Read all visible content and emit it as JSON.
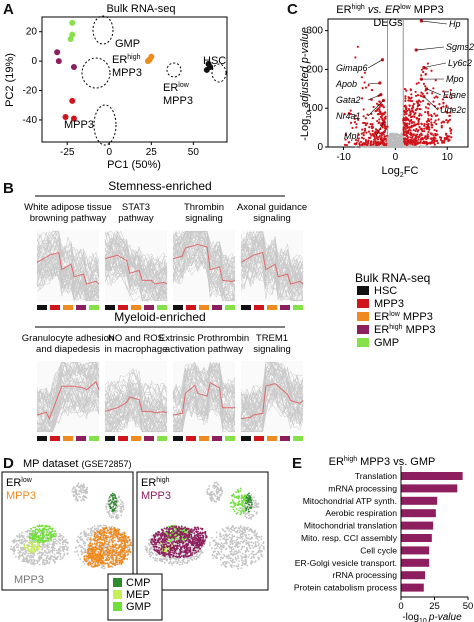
{
  "panels": {
    "A": {
      "label": "A",
      "title": "Bulk RNA-seq",
      "xlabel": "PC1 (50%)",
      "ylabel": "PC2 (19%)",
      "xticks": [
        "-25",
        "0",
        "25",
        "50"
      ],
      "yticks": [
        "20",
        "0",
        "-20",
        "-40"
      ],
      "groups": {
        "gmp": "GMP",
        "erhigh_er": "ER",
        "erhigh_sup": "high",
        "erhigh_rest": "MPP3",
        "erlow_er": "ER",
        "erlow_sup": "low",
        "erlow_rest": "MPP3",
        "hsc": "HSC",
        "mpp3": "MPP3"
      }
    },
    "B": {
      "label": "B",
      "stemness_header": "Stemness-enriched",
      "myeloid_header": "Myeloid-enriched",
      "stemness_pathways": [
        [
          "White adipose tissue",
          "browning pathway"
        ],
        [
          "STAT3",
          "pathway"
        ],
        [
          "Thrombin",
          "signaling"
        ],
        [
          "Axonal guidance",
          "signaling"
        ]
      ],
      "myeloid_pathways": [
        [
          "Granulocyte adhesion",
          "and diapedesis"
        ],
        [
          "NO and ROS",
          "in macrophage"
        ],
        [
          "Extrinsic Prothrombin",
          "activation pathway"
        ],
        [
          "TREM1",
          "signaling"
        ]
      ],
      "legend_title": "Bulk RNA-seq",
      "legend": [
        {
          "label": "HSC",
          "color": "#111111"
        },
        {
          "label": "MPP3",
          "color": "#d0141c"
        },
        {
          "er": "ER",
          "sup": "low",
          "rest": " MPP3",
          "color": "#ef8a1e"
        },
        {
          "er": "ER",
          "sup": "high",
          "rest": " MPP3",
          "color": "#8e1f5e"
        },
        {
          "label": "GMP",
          "color": "#86e04a"
        }
      ]
    },
    "C": {
      "label": "C",
      "title_er1": "ER",
      "title_sup1": "high",
      "title_vs": " vs. ER",
      "title_sup2": "low",
      "title_rest": " MPP3",
      "subtitle": "DEGs",
      "xlabel_main": "Log",
      "xlabel_sub": "2",
      "xlabel_end": "FC",
      "ylabel": "-Log",
      "ylabel_sub": "10",
      "ylabel_end": " adjusted p-value",
      "xticks": [
        "-10",
        "0",
        "10"
      ],
      "yticks": [
        "300",
        "200",
        "100",
        "0"
      ],
      "genes_left": [
        "Gimap6",
        "Apob",
        "Gata2",
        "Nr4a1",
        "Mpl"
      ],
      "genes_right": [
        "Hp",
        "Sgms2",
        "Ly6c2",
        "Mpo",
        "Elane",
        "Ube2c"
      ]
    },
    "D": {
      "label": "D",
      "title": "MP dataset",
      "title_gse": "(GSE72857)",
      "left_er": "ER",
      "left_sup": "low",
      "left_rest": "MPP3",
      "left_bottom": "MPP3",
      "right_er": "ER",
      "right_sup": "high",
      "right_rest": "MPP3",
      "legend": [
        {
          "label": "CMP",
          "color": "#2e8b2e"
        },
        {
          "label": "MEP",
          "color": "#c8ee5a"
        },
        {
          "label": "GMP",
          "color": "#6fe03a"
        }
      ]
    },
    "E": {
      "label": "E",
      "title_er": "ER",
      "title_sup": "high",
      "title_rest": " MPP3 vs. GMP",
      "xlabel": "-log",
      "xlabel_sub": "10",
      "xlabel_end": "p-value",
      "bar_color": "#8e1f5e"
    }
  },
  "chart_data": [
    {
      "type": "scatter",
      "panel": "A",
      "title": "Bulk RNA-seq",
      "xlabel": "PC1 (50%)",
      "ylabel": "PC2 (19%)",
      "xlim": [
        -40,
        70
      ],
      "ylim": [
        -55,
        30
      ],
      "series": [
        {
          "name": "GMP",
          "color": "#86e04a",
          "points": [
            [
              -22,
              26
            ],
            [
              -22,
              18
            ],
            [
              -23,
              15
            ]
          ]
        },
        {
          "name": "ERhigh MPP3",
          "color": "#8e1f5e",
          "points": [
            [
              -31,
              6
            ],
            [
              -30,
              0
            ],
            [
              -21,
              -4
            ]
          ]
        },
        {
          "name": "ERlow MPP3",
          "color": "#ef8a1e",
          "points": [
            [
              24,
              1
            ],
            [
              25,
              3
            ],
            [
              23,
              0
            ]
          ]
        },
        {
          "name": "HSC",
          "color": "#111111",
          "points": [
            [
              59,
              -2
            ],
            [
              60,
              -4
            ],
            [
              58,
              -6
            ]
          ]
        },
        {
          "name": "MPP3",
          "color": "#d0141c",
          "points": [
            [
              -22,
              -27
            ],
            [
              -26,
              -38
            ],
            [
              -21,
              -39
            ]
          ]
        }
      ]
    },
    {
      "type": "scatter",
      "panel": "C",
      "xlabel": "Log2FC",
      "ylabel": "-Log10 adjusted p-value",
      "xlim": [
        -13,
        14
      ],
      "ylim": [
        0,
        330
      ],
      "thresholds": {
        "x": [
          -1.5,
          1.5
        ]
      },
      "labeled_points": [
        {
          "gene": "Hp",
          "x": 5.0,
          "y": 325
        },
        {
          "gene": "Sgms2",
          "x": 4.0,
          "y": 250
        },
        {
          "gene": "Ly6c2",
          "x": 5.5,
          "y": 205
        },
        {
          "gene": "Mpo",
          "x": 5.0,
          "y": 175
        },
        {
          "gene": "Elane",
          "x": 6.0,
          "y": 150
        },
        {
          "gene": "Ube2c",
          "x": 5.5,
          "y": 130
        },
        {
          "gene": "Gimap6",
          "x": -2.5,
          "y": 225
        },
        {
          "gene": "Apob",
          "x": -3.0,
          "y": 165
        },
        {
          "gene": "Gata2",
          "x": -2.8,
          "y": 135
        },
        {
          "gene": "Nr4a1",
          "x": -2.3,
          "y": 120
        },
        {
          "gene": "Mpl",
          "x": -2.2,
          "y": 65
        }
      ]
    },
    {
      "type": "bar",
      "panel": "E",
      "orientation": "horizontal",
      "title": "ERhigh MPP3 vs. GMP",
      "xlabel": "-log10 p-value",
      "xlim": [
        0,
        50
      ],
      "xticks": [
        "0",
        "25",
        "50"
      ],
      "categories": [
        "Translation",
        "mRNA processing",
        "Mitochondrial ATP synth.",
        "Aerobic respiration",
        "Mitochondrial translation",
        "Mito. resp. CCI assembly",
        "Cell cycle",
        "ER-Golgi vesicle transport.",
        "rRNA processing",
        "Protein catabolism process"
      ],
      "values": [
        46,
        42,
        27,
        26,
        24,
        23,
        21,
        21,
        18,
        17
      ]
    }
  ]
}
